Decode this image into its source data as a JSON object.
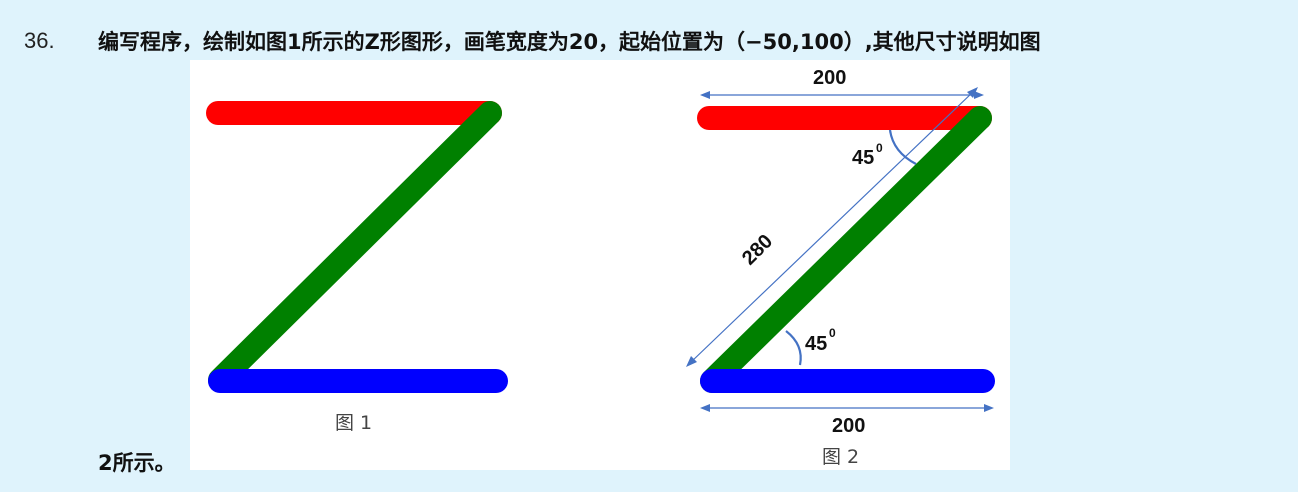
{
  "question": {
    "number": "36.",
    "line1": "编写程序，绘制如图1所示的Z形图形，画笔宽度为20，起始位置为（−50,100）,其他尺寸说明如图",
    "line2": "2所示。"
  },
  "figure1": {
    "caption": "图 1",
    "colors": {
      "top": "#ff0000",
      "diagonal": "#008000",
      "bottom": "#0000ff"
    }
  },
  "figure2": {
    "caption": "图 2",
    "top_width_label": "200",
    "bottom_width_label": "200",
    "diagonal_length_label": "280",
    "angle_top_label": "45",
    "angle_top_sup": "0",
    "angle_bottom_label": "45",
    "angle_bottom_sup": "0",
    "colors": {
      "top": "#ff0000",
      "diagonal": "#008000",
      "bottom": "#0000ff",
      "dimension": "#4472c4"
    }
  }
}
